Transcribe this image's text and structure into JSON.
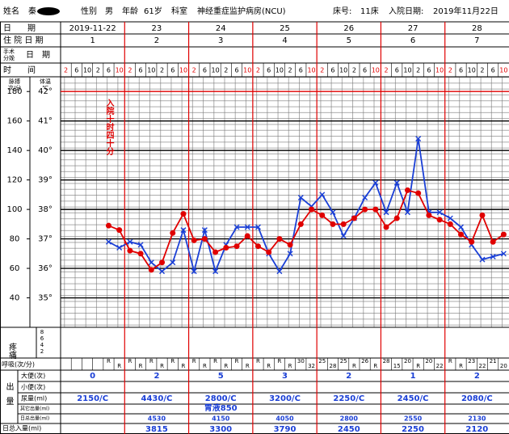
{
  "header": {
    "name_label": "姓名",
    "name": "秦",
    "sex_label": "性别",
    "sex": "男",
    "age_label": "年龄",
    "age": "61岁",
    "dept_label": "科室",
    "dept": "神经重症监护病房(NCU)",
    "bed_label": "床号:",
    "bed": "11床",
    "admit_label": "入院日期:",
    "admit_date": "2019年11月22日"
  },
  "row_labels": {
    "date": "日　　期",
    "hospital_day": "住 院 日 期",
    "surgery_a": "手术",
    "surgery_b": "分娩",
    "surgery_c": "日　期",
    "time": "时　　间",
    "pain": "疼痛",
    "respiration": "呼吸(次/分)",
    "output": "出量",
    "stool": "大便(次)",
    "urine_count": "小便(次)",
    "urine": "尿量(ml)",
    "other_output": "其它出量(ml)",
    "total_output": "日总出量(ml)",
    "total_input": "日总入量(ml)"
  },
  "dates": [
    "2019-11-22",
    "23",
    "24",
    "25",
    "26",
    "27",
    "28"
  ],
  "hospital_days": [
    1,
    2,
    3,
    4,
    5,
    6,
    7
  ],
  "pain_scale": [
    8,
    6,
    4,
    2
  ],
  "respiration": [
    null,
    null,
    null,
    null,
    "R",
    "R",
    "R",
    "R",
    "R",
    "R",
    "R",
    "R",
    "R",
    "R",
    "R",
    "R",
    "R",
    "R",
    "R",
    "R",
    "R",
    "R",
    "30",
    "32",
    "25",
    "28",
    "25",
    "R",
    "26",
    "R",
    "28",
    "15",
    "20",
    "R",
    "20",
    "22",
    "R",
    "R",
    "23",
    "22",
    "21",
    "20"
  ],
  "stool": [
    0,
    2,
    5,
    3,
    2,
    1,
    2
  ],
  "urine": [
    "2150/C",
    "4430/C",
    "2800/C",
    "3200/C",
    "2250/C",
    "2450/C",
    "2080/C"
  ],
  "other_output": [
    null,
    null,
    "胃液850",
    null,
    null,
    null,
    null
  ],
  "total_output": [
    null,
    4530,
    4150,
    4050,
    2800,
    2550,
    2130
  ],
  "total_input": [
    null,
    3815,
    3300,
    3790,
    2450,
    2250,
    2120
  ],
  "chart_data": {
    "type": "line",
    "annotation": "入院十时四十分",
    "ylabel": "体温",
    "yunit": "℃",
    "y2label": "脉搏",
    "y2unit": "次/分",
    "categories": [
      2,
      6,
      10,
      2,
      6,
      10,
      2,
      6,
      10,
      2,
      6,
      10,
      2,
      6,
      10,
      2,
      6,
      10,
      2,
      6,
      10,
      2,
      6,
      10,
      2,
      6,
      10,
      2,
      6,
      10,
      2,
      6,
      10,
      2,
      6,
      10,
      2,
      6,
      10,
      2,
      6,
      10
    ],
    "ylim": [
      34,
      42.5
    ],
    "yticks": [
      {
        "value": 35,
        "label": "35°"
      },
      {
        "value": 36,
        "label": "36°"
      },
      {
        "value": 37,
        "label": "37°"
      },
      {
        "value": 38,
        "label": "38°"
      },
      {
        "value": 39,
        "label": "39°"
      },
      {
        "value": 40,
        "label": "40°"
      },
      {
        "value": 41,
        "label": "41°"
      },
      {
        "value": 42,
        "label": "42°"
      }
    ],
    "y2lim": [
      20,
      190
    ],
    "y2ticks": [
      40,
      60,
      80,
      100,
      120,
      140,
      160,
      180
    ],
    "series": [
      {
        "name": "体温",
        "color": "#1a3fd6",
        "marker": "x",
        "values": [
          null,
          null,
          null,
          null,
          36.9,
          36.7,
          36.9,
          36.8,
          36.2,
          35.9,
          36.2,
          37.3,
          35.9,
          37.3,
          35.9,
          36.8,
          37.4,
          37.4,
          37.4,
          36.5,
          35.9,
          36.5,
          38.4,
          38.1,
          38.5,
          37.9,
          37.1,
          37.7,
          38.4,
          38.9,
          37.9,
          38.9,
          37.9,
          40.4,
          37.9,
          37.9,
          37.7,
          37.4,
          36.8,
          36.3,
          36.4,
          36.5
        ]
      },
      {
        "name": "脉搏",
        "color": "#e00000",
        "marker": "circle",
        "axis": "y2",
        "values": [
          null,
          null,
          null,
          null,
          89,
          86,
          72,
          70,
          59,
          64,
          84,
          97,
          79,
          80,
          71,
          74,
          75,
          82,
          75,
          71,
          80,
          76,
          90,
          100,
          96,
          90,
          90,
          94,
          100,
          100,
          88,
          94,
          113,
          111,
          96,
          93,
          90,
          83,
          78,
          96,
          78,
          83
        ]
      }
    ]
  }
}
